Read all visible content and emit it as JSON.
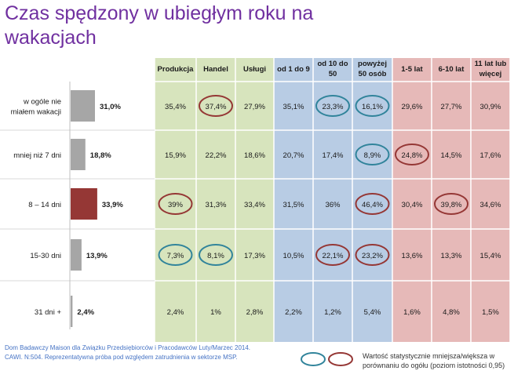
{
  "title": "Czas spędzony w ubiegłym roku na wakacjach",
  "colors": {
    "green": "#d7e4bd",
    "blue": "#b8cce4",
    "pink": "#e6b9b8",
    "bar_gray": "#a6a6a6",
    "bar_highlight": "#953735",
    "circle_blue": "#31849b",
    "circle_red": "#953735"
  },
  "column_headers": [
    {
      "lines": [
        "Produkcja"
      ],
      "group": "green"
    },
    {
      "lines": [
        "Handel"
      ],
      "group": "green"
    },
    {
      "lines": [
        "Usługi"
      ],
      "group": "green"
    },
    {
      "lines": [
        "od 1 do 9"
      ],
      "group": "blue"
    },
    {
      "lines": [
        "od 10 do",
        "50"
      ],
      "group": "blue"
    },
    {
      "lines": [
        "powyżej",
        "50 osób"
      ],
      "group": "blue"
    },
    {
      "lines": [
        "1-5 lat"
      ],
      "group": "pink"
    },
    {
      "lines": [
        "6-10 lat"
      ],
      "group": "pink"
    },
    {
      "lines": [
        "11 lat lub",
        "więcej"
      ],
      "group": "pink"
    }
  ],
  "rows": [
    {
      "label_lines": [
        "w ogóle nie",
        "miałem wakacji"
      ],
      "total": 31.0,
      "total_label": "31,0%",
      "highlight": false,
      "cells": [
        "35,4%",
        "37,4%",
        "27,9%",
        "35,1%",
        "23,3%",
        "16,1%",
        "29,6%",
        "27,7%",
        "30,9%"
      ],
      "circles": [
        "",
        "red",
        "",
        "",
        "blue",
        "blue",
        "",
        "",
        ""
      ]
    },
    {
      "label_lines": [
        "mniej niż 7 dni"
      ],
      "total": 18.8,
      "total_label": "18,8%",
      "highlight": false,
      "cells": [
        "15,9%",
        "22,2%",
        "18,6%",
        "20,7%",
        "17,4%",
        "8,9%",
        "24,8%",
        "14,5%",
        "17,6%"
      ],
      "circles": [
        "",
        "",
        "",
        "",
        "",
        "blue",
        "red",
        "",
        ""
      ]
    },
    {
      "label_lines": [
        "8 – 14 dni"
      ],
      "total": 33.9,
      "total_label": "33,9%",
      "highlight": true,
      "cells": [
        "39%",
        "31,3%",
        "33,4%",
        "31,5%",
        "36%",
        "46,4%",
        "30,4%",
        "39,8%",
        "34,6%"
      ],
      "circles": [
        "red",
        "",
        "",
        "",
        "",
        "red",
        "",
        "red",
        ""
      ]
    },
    {
      "label_lines": [
        "15-30 dni"
      ],
      "total": 13.9,
      "total_label": "13,9%",
      "highlight": false,
      "cells": [
        "7,3%",
        "8,1%",
        "17,3%",
        "10,5%",
        "22,1%",
        "23,2%",
        "13,6%",
        "13,3%",
        "15,4%"
      ],
      "circles": [
        "blue",
        "blue",
        "",
        "",
        "red",
        "red",
        "",
        "",
        ""
      ]
    },
    {
      "label_lines": [
        "31 dni +"
      ],
      "total": 2.4,
      "total_label": "2,4%",
      "highlight": false,
      "cells": [
        "2,4%",
        "1%",
        "2,8%",
        "2,2%",
        "1,2%",
        "5,4%",
        "1,6%",
        "4,8%",
        "1,5%"
      ],
      "circles": [
        "",
        "",
        "",
        "",
        "",
        "",
        "",
        "",
        ""
      ]
    }
  ],
  "chart_data": {
    "type": "bar",
    "orientation": "horizontal",
    "title": "Czas spędzony w ubiegłym roku na wakacjach",
    "categories": [
      "w ogóle nie miałem wakacji",
      "mniej niż 7 dni",
      "8 – 14 dni",
      "15-30 dni",
      "31 dni +"
    ],
    "values": [
      31.0,
      18.8,
      33.9,
      13.9,
      2.4
    ],
    "unit": "%",
    "table_columns": [
      "Produkcja",
      "Handel",
      "Usługi",
      "od 1 do 9",
      "od 10 do 50",
      "powyżej 50 osób",
      "1-5 lat",
      "6-10 lat",
      "11 lat lub więcej"
    ]
  },
  "footer": {
    "source_line1": "Dom Badawczy Maison dla Związku Przedsiębiorców i Pracodawców Luty/Marzec 2014.",
    "source_line2": "CAWI. N:504. Reprezentatywna próba pod względem zatrudnienia  w sektorze MSP.",
    "legend": "Wartość statystycznie mniejsza/większa w porównaniu do ogółu (poziom istotności 0,95)"
  }
}
